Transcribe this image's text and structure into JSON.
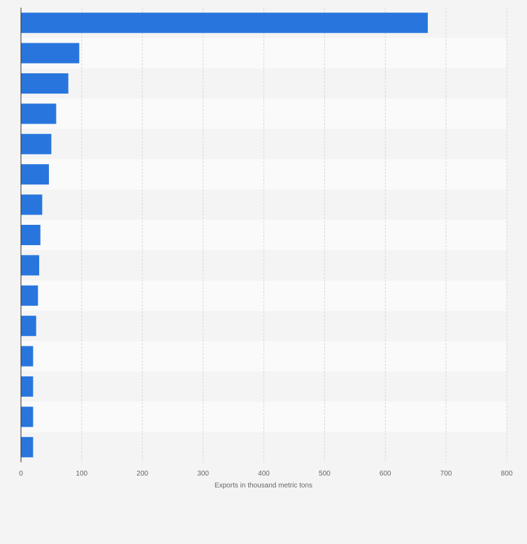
{
  "chart_data": {
    "type": "bar",
    "orientation": "horizontal",
    "title": "",
    "xlabel": "Exports in thousand metric tons",
    "ylabel": "",
    "xlim": [
      0,
      800
    ],
    "xticks": [
      "0",
      "100",
      "200",
      "300",
      "400",
      "500",
      "600",
      "700",
      "800"
    ],
    "categories": [
      "",
      "",
      "",
      "",
      "",
      "",
      "",
      "",
      "",
      "",
      "",
      "",
      "",
      "",
      ""
    ],
    "values": [
      670,
      96,
      78,
      58,
      50,
      46,
      35,
      32,
      30,
      28,
      25,
      20,
      20,
      20,
      20
    ],
    "grid": true,
    "bar_color": "#2876dd"
  }
}
